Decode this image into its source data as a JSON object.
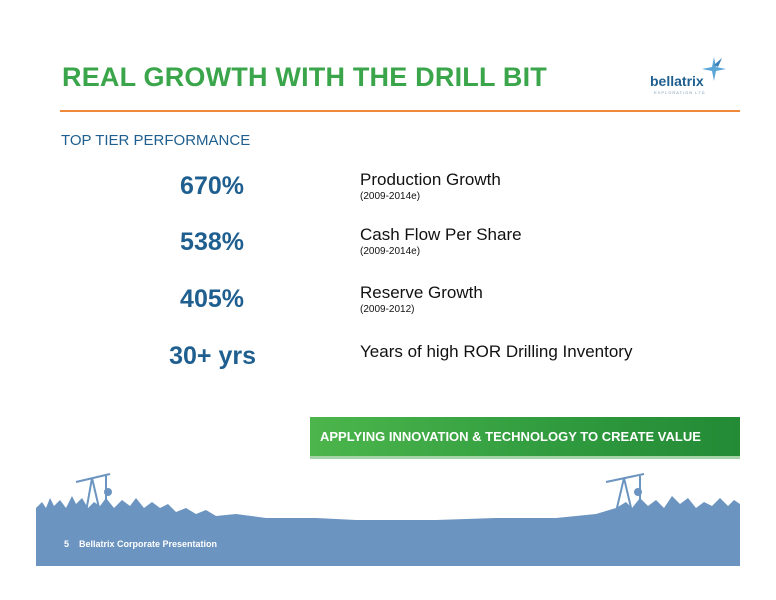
{
  "header": {
    "title": "REAL GROWTH WITH THE DRILL BIT",
    "logo_name": "bellatrix",
    "logo_subtext": "EXPLORATION LTD"
  },
  "section": {
    "subtitle": "TOP TIER PERFORMANCE"
  },
  "metrics": [
    {
      "value": "670%",
      "label": "Production Growth",
      "period": "(2009-2014e)"
    },
    {
      "value": "538%",
      "label": "Cash Flow Per Share",
      "period": "(2009-2014e)"
    },
    {
      "value": "405%",
      "label": "Reserve Growth",
      "period": "(2009-2012)"
    },
    {
      "value": "30+ yrs",
      "label": "Years of high ROR Drilling Inventory",
      "period": ""
    }
  ],
  "banner": {
    "text": "APPLYING INNOVATION & TECHNOLOGY TO CREATE VALUE"
  },
  "footer": {
    "page_number": "5",
    "text": "Bellatrix Corporate Presentation"
  },
  "colors": {
    "title_green": "#3aa54a",
    "metric_blue": "#1f5f8f",
    "rule_orange": "#f08a3a",
    "footer_blue": "#6b94c0"
  }
}
